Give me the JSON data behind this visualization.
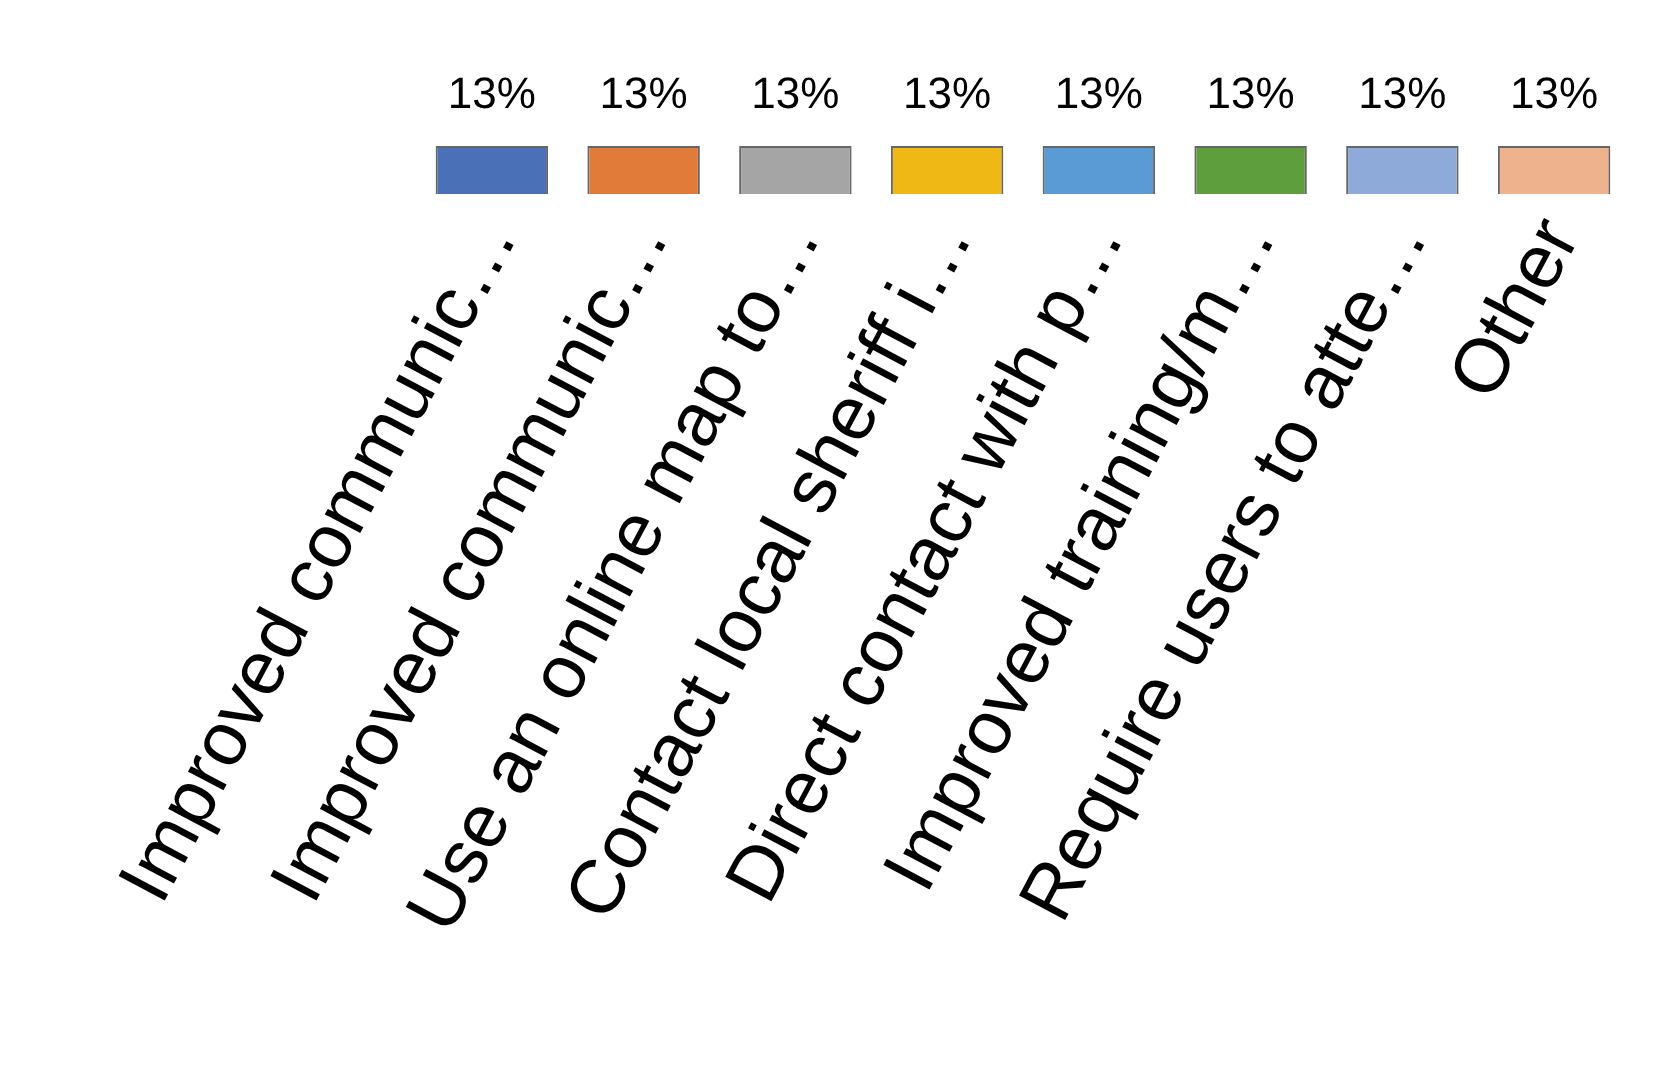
{
  "chart_data": {
    "type": "bar",
    "categories": [
      "Improved communic…",
      "Improved communic…",
      "Use an online map to…",
      "Contact local sheriff i…",
      "Direct contact with p…",
      "Improved training/m…",
      "Require users to atte…",
      "Other"
    ],
    "values": [
      13,
      13,
      13,
      13,
      13,
      13,
      13,
      13
    ],
    "colors": [
      "#4a70b8",
      "#e07b39",
      "#a5a5a5",
      "#f0b814",
      "#5b9bd5",
      "#5e9e3c",
      "#8eaad8",
      "#eeb38c"
    ],
    "value_labels": [
      "13%",
      "13%",
      "13%",
      "13%",
      "13%",
      "13%",
      "13%",
      "13%"
    ],
    "grid": false,
    "legend": false,
    "tick_labels": "x"
  }
}
